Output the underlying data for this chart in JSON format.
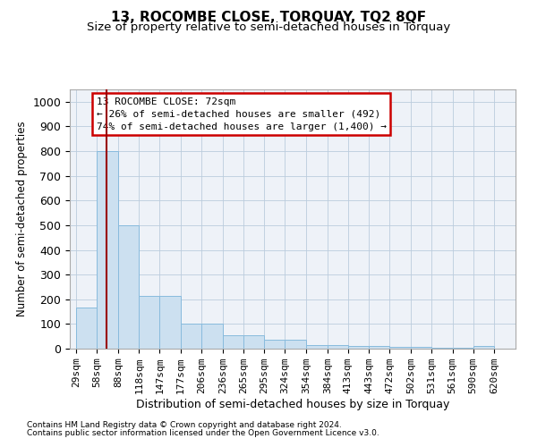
{
  "title": "13, ROCOMBE CLOSE, TORQUAY, TQ2 8QF",
  "subtitle": "Size of property relative to semi-detached houses in Torquay",
  "xlabel": "Distribution of semi-detached houses by size in Torquay",
  "ylabel": "Number of semi-detached properties",
  "footnote1": "Contains HM Land Registry data © Crown copyright and database right 2024.",
  "footnote2": "Contains public sector information licensed under the Open Government Licence v3.0.",
  "annotation_title": "13 ROCOMBE CLOSE: 72sqm",
  "annotation_line1": "← 26% of semi-detached houses are smaller (492)",
  "annotation_line2": "74% of semi-detached houses are larger (1,400) →",
  "bar_left_edges": [
    29,
    58,
    88,
    118,
    147,
    177,
    206,
    236,
    265,
    295,
    324,
    354,
    384,
    413,
    443,
    472,
    502,
    531,
    561,
    590
  ],
  "bar_widths": [
    29,
    30,
    30,
    29,
    30,
    29,
    30,
    29,
    30,
    29,
    30,
    30,
    29,
    30,
    29,
    30,
    29,
    30,
    29,
    30
  ],
  "bar_heights": [
    165,
    800,
    500,
    215,
    215,
    100,
    100,
    53,
    53,
    35,
    35,
    15,
    15,
    10,
    10,
    8,
    8,
    5,
    5,
    10
  ],
  "tick_labels": [
    "29sqm",
    "58sqm",
    "88sqm",
    "118sqm",
    "147sqm",
    "177sqm",
    "206sqm",
    "236sqm",
    "265sqm",
    "295sqm",
    "324sqm",
    "354sqm",
    "384sqm",
    "413sqm",
    "443sqm",
    "472sqm",
    "502sqm",
    "531sqm",
    "561sqm",
    "590sqm",
    "620sqm"
  ],
  "bar_color": "#cce0f0",
  "bar_edge_color": "#88bbdd",
  "vline_x": 72,
  "vline_color": "#990000",
  "annotation_box_color": "#cc0000",
  "ylim": [
    0,
    1050
  ],
  "xlim": [
    20,
    650
  ],
  "yticks": [
    0,
    100,
    200,
    300,
    400,
    500,
    600,
    700,
    800,
    900,
    1000
  ],
  "grid_color": "#bbccdd",
  "bg_color": "#eef2f8",
  "title_fontsize": 11,
  "subtitle_fontsize": 9.5,
  "tick_fontsize": 8,
  "ylabel_fontsize": 8.5,
  "xlabel_fontsize": 9,
  "footnote_fontsize": 6.5,
  "annotation_fontsize": 8
}
